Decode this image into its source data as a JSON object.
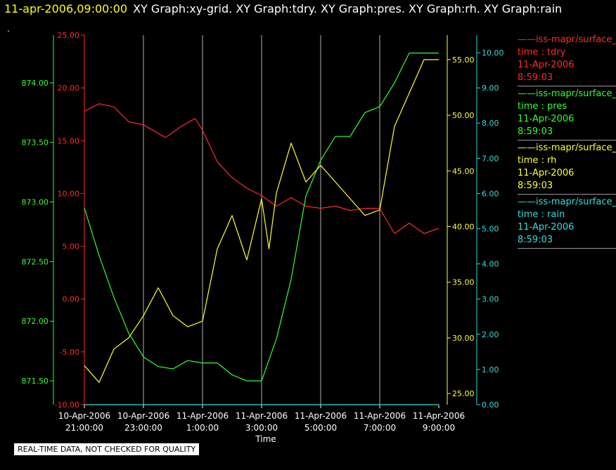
{
  "header": {
    "timestamp": "11-apr-2006,09:00:00",
    "graphs": "XY Graph:xy-grid.  XY Graph:tdry.  XY Graph:pres.  XY Graph:rh.  XY Graph:rain",
    "dot": "."
  },
  "footer": {
    "quality_note": "REAL-TIME DATA, NOT CHECKED FOR QUALITY"
  },
  "legend": [
    {
      "name": "iss-mapr/surface_m",
      "var": "time : tdry",
      "date": "11-Apr-2006",
      "time": "8:59:03",
      "color": "#ff2a2a"
    },
    {
      "name": "iss-mapr/surface_m",
      "var": "time : pres",
      "date": "11-Apr-2006",
      "time": "8:59:03",
      "color": "#33ff33"
    },
    {
      "name": "iss-mapr/surface_m",
      "var": "time : rh",
      "date": "11-Apr-2006",
      "time": "8:59:03",
      "color": "#ffff33"
    },
    {
      "name": "iss-mapr/surface_m",
      "var": "time : rain",
      "date": "11-Apr-2006",
      "time": "8:59:03",
      "color": "#33dddd"
    }
  ],
  "chart_data": {
    "type": "line",
    "xlabel": "Time",
    "x_ticks": [
      [
        "10-Apr-2006",
        "21:00:00"
      ],
      [
        "10-Apr-2006",
        "23:00:00"
      ],
      [
        "11-Apr-2006",
        "1:00:00"
      ],
      [
        "11-Apr-2006",
        "3:00:00"
      ],
      [
        "11-Apr-2006",
        "5:00:00"
      ],
      [
        "11-Apr-2006",
        "7:00:00"
      ],
      [
        "11-Apr-2006",
        "9:00:00"
      ]
    ],
    "xlim": [
      "2006-04-10 21:00",
      "2006-04-11 09:00"
    ],
    "grid": "vertical",
    "axes": {
      "tdry": {
        "color": "#ff2a2a",
        "ylim": [
          -10,
          25
        ],
        "ticks": [
          "-10.00",
          "-5.00",
          "0.00",
          "5.00",
          "10.00",
          "15.00",
          "20.00",
          "25.00"
        ]
      },
      "pres": {
        "color": "#33ff33",
        "ylim": [
          871.3,
          874.4
        ],
        "ticks": [
          "871.50",
          "872.00",
          "872.50",
          "873.00",
          "873.50",
          "874.00"
        ]
      },
      "rh": {
        "color": "#ffff33",
        "ylim": [
          24,
          57.2
        ],
        "ticks": [
          "25.00",
          "30.00",
          "35.00",
          "40.00",
          "45.00",
          "50.00",
          "55.00"
        ]
      },
      "rain": {
        "color": "#33dddd",
        "ylim": [
          0,
          10.5
        ],
        "ticks": [
          "0.00",
          "1.00",
          "2.00",
          "3.00",
          "4.00",
          "5.00",
          "6.00",
          "7.00",
          "8.00",
          "9.00",
          "10.00"
        ]
      }
    },
    "series": [
      {
        "name": "tdry",
        "color": "#ff2a2a",
        "x": [
          "2006-04-10 21:00",
          "2006-04-10 21:30",
          "2006-04-10 22:00",
          "2006-04-10 22:30",
          "2006-04-10 23:00",
          "2006-04-10 23:45",
          "2006-04-11 00:15",
          "2006-04-11 00:45",
          "2006-04-11 01:00",
          "2006-04-11 01:30",
          "2006-04-11 02:00",
          "2006-04-11 02:30",
          "2006-04-11 03:00",
          "2006-04-11 03:30",
          "2006-04-11 04:00",
          "2006-04-11 04:30",
          "2006-04-11 05:00",
          "2006-04-11 05:30",
          "2006-04-11 06:00",
          "2006-04-11 06:30",
          "2006-04-11 07:00",
          "2006-04-11 07:30",
          "2006-04-11 08:00",
          "2006-04-11 08:30",
          "2006-04-11 09:00"
        ],
        "y": [
          17.8,
          18.5,
          18.2,
          16.8,
          16.5,
          15.3,
          16.3,
          17.1,
          16.0,
          13.0,
          11.5,
          10.5,
          9.8,
          8.8,
          9.6,
          8.8,
          8.6,
          8.8,
          8.4,
          8.6,
          8.6,
          6.2,
          7.2,
          6.2,
          6.7
        ]
      },
      {
        "name": "pres",
        "color": "#33ff33",
        "x": [
          "2006-04-10 21:00",
          "2006-04-10 21:30",
          "2006-04-10 22:00",
          "2006-04-10 22:30",
          "2006-04-10 23:00",
          "2006-04-10 23:30",
          "2006-04-11 00:00",
          "2006-04-11 00:30",
          "2006-04-11 01:00",
          "2006-04-11 01:30",
          "2006-04-11 02:00",
          "2006-04-11 02:30",
          "2006-04-11 03:00",
          "2006-04-11 03:30",
          "2006-04-11 04:00",
          "2006-04-11 04:30",
          "2006-04-11 05:00",
          "2006-04-11 05:30",
          "2006-04-11 06:00",
          "2006-04-11 06:30",
          "2006-04-11 07:00",
          "2006-04-11 07:30",
          "2006-04-11 08:00",
          "2006-04-11 08:30",
          "2006-04-11 09:00"
        ],
        "y": [
          872.95,
          872.55,
          872.2,
          871.9,
          871.7,
          871.62,
          871.6,
          871.67,
          871.65,
          871.65,
          871.55,
          871.5,
          871.5,
          871.85,
          872.35,
          873.05,
          873.35,
          873.55,
          873.55,
          873.75,
          873.8,
          874.0,
          874.25,
          874.25,
          874.25
        ]
      },
      {
        "name": "rh",
        "color": "#ffff33",
        "x": [
          "2006-04-10 21:00",
          "2006-04-10 21:30",
          "2006-04-10 22:00",
          "2006-04-10 22:30",
          "2006-04-10 23:00",
          "2006-04-10 23:30",
          "2006-04-11 00:00",
          "2006-04-11 00:30",
          "2006-04-11 01:00",
          "2006-04-11 01:30",
          "2006-04-11 02:00",
          "2006-04-11 02:30",
          "2006-04-11 03:00",
          "2006-04-11 03:15",
          "2006-04-11 03:30",
          "2006-04-11 04:00",
          "2006-04-11 04:30",
          "2006-04-11 05:00",
          "2006-04-11 05:30",
          "2006-04-11 06:00",
          "2006-04-11 06:30",
          "2006-04-11 07:00",
          "2006-04-11 07:30",
          "2006-04-11 08:00",
          "2006-04-11 08:30",
          "2006-04-11 09:00"
        ],
        "y": [
          27.5,
          26.0,
          29.0,
          30.0,
          32.0,
          34.5,
          32.0,
          31.0,
          31.5,
          38.0,
          41.0,
          37.0,
          42.5,
          38.0,
          43.0,
          47.5,
          44.0,
          45.5,
          44.0,
          42.5,
          41.0,
          41.5,
          49.0,
          52.0,
          55.0,
          55.0
        ]
      },
      {
        "name": "rain",
        "color": "#33dddd",
        "x": [
          "2006-04-10 21:00",
          "2006-04-11 09:00"
        ],
        "y": [
          0.0,
          0.0
        ]
      }
    ]
  }
}
